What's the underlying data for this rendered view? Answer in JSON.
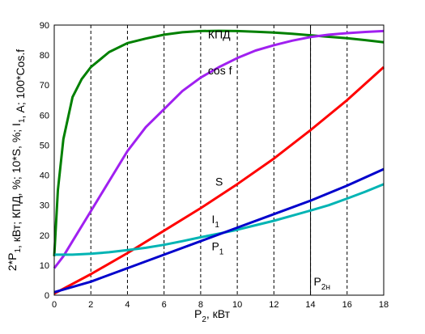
{
  "chart_data": {
    "type": "line",
    "xlabel": "P2, кВт",
    "ylabel": "2*P1, кВт; КПД, %; 10*S, %; I1, A; 100*Cos.f",
    "xlim": [
      0,
      18
    ],
    "ylim": [
      0,
      90
    ],
    "x_ticks": [
      0,
      2,
      4,
      6,
      8,
      10,
      12,
      14,
      16,
      18
    ],
    "y_ticks": [
      0,
      10,
      20,
      30,
      40,
      50,
      60,
      70,
      80,
      90
    ],
    "grid": "vertical-dashed",
    "reference_line": {
      "x": 14,
      "label": "P2н"
    },
    "series": [
      {
        "name": "КПД",
        "color": "#008000",
        "x": [
          0,
          0.2,
          0.5,
          1,
          1.5,
          2,
          3,
          4,
          5,
          6,
          7,
          8,
          9,
          10,
          11,
          12,
          13,
          14,
          15,
          16,
          17,
          18
        ],
        "y": [
          13,
          35,
          52,
          66,
          72,
          76,
          81,
          84,
          85.5,
          86.8,
          87.6,
          88,
          88.1,
          88,
          87.8,
          87.5,
          87.1,
          86.6,
          86.1,
          85.6,
          85,
          84.3
        ]
      },
      {
        "name": "cos f",
        "color": "#a020f0",
        "x": [
          0,
          0.5,
          1,
          2,
          3,
          4,
          5,
          6,
          7,
          8,
          9,
          10,
          11,
          12,
          13,
          14,
          15,
          16,
          17,
          18
        ],
        "y": [
          9,
          13,
          18,
          28,
          38,
          48,
          56,
          62,
          68,
          72.5,
          76,
          79,
          81.5,
          83.3,
          84.8,
          86,
          86.8,
          87.3,
          87.7,
          88
        ]
      },
      {
        "name": "S",
        "color": "#ff0000",
        "x": [
          0,
          2,
          4,
          6,
          8,
          10,
          12,
          14,
          16,
          18
        ],
        "y": [
          0.5,
          7,
          14,
          21.5,
          29,
          37,
          45.5,
          55,
          65,
          76
        ]
      },
      {
        "name": "I1",
        "color": "#00b4b4",
        "x": [
          0,
          1,
          2,
          3,
          4,
          5,
          6,
          7,
          8,
          9,
          10,
          11,
          12,
          13,
          14,
          15,
          16,
          17,
          18
        ],
        "y": [
          13.5,
          13.5,
          13.8,
          14.3,
          15,
          15.8,
          16.8,
          18,
          19.3,
          20.5,
          21.8,
          23.3,
          24.8,
          26.5,
          28.2,
          30,
          32.2,
          34.5,
          37
        ]
      },
      {
        "name": "P1",
        "color": "#0000cc",
        "x": [
          0,
          2,
          4,
          6,
          8,
          10,
          12,
          14,
          16,
          18
        ],
        "y": [
          1,
          4.5,
          9,
          13.5,
          18,
          22.5,
          27,
          31.5,
          36.5,
          42
        ]
      }
    ],
    "annotations": [
      {
        "text": "КПД",
        "x": 8.4,
        "y": 85.5
      },
      {
        "text": "cos f",
        "x": 8.4,
        "y": 73.5
      },
      {
        "text": "S",
        "x": 8.8,
        "y": 36.5
      },
      {
        "text": "I",
        "sub": "1",
        "x": 8.6,
        "y": 24
      },
      {
        "text": "P",
        "sub": "1",
        "x": 8.6,
        "y": 15
      }
    ]
  }
}
